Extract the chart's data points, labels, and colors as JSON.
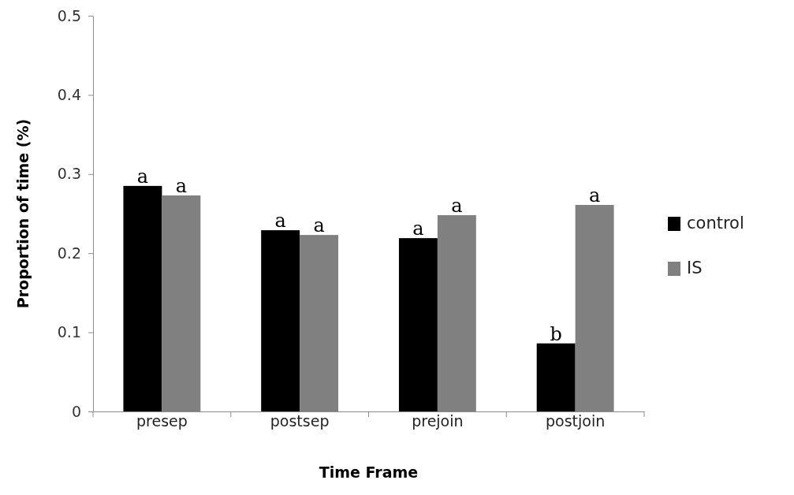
{
  "chart_data": {
    "type": "bar",
    "xlabel": "Time Frame",
    "ylabel": "Proportion  of time (%)",
    "categories": [
      "presep",
      "postsep",
      "prejoin",
      "postjoin"
    ],
    "series": [
      {
        "name": "control",
        "color": "#000000",
        "values": [
          0.285,
          0.229,
          0.219,
          0.086
        ]
      },
      {
        "name": "IS",
        "color": "#808080",
        "values": [
          0.273,
          0.223,
          0.248,
          0.261
        ]
      }
    ],
    "ylim": [
      0,
      0.5
    ],
    "yticks": [
      0,
      0.1,
      0.2,
      0.3,
      0.4,
      0.5
    ],
    "grid": false,
    "legend": "right",
    "annotations": [
      {
        "text": "a",
        "x": "presep",
        "y": 0.285
      },
      {
        "text": "a",
        "x": "presep",
        "y": 0.273
      },
      {
        "text": "a",
        "x": "postsep",
        "y": 0.229
      },
      {
        "text": "a",
        "x": "postsep",
        "y": 0.223
      },
      {
        "text": "a",
        "x": "prejoin",
        "y": 0.219
      },
      {
        "text": "a",
        "x": "prejoin",
        "y": 0.248
      },
      {
        "text": "b",
        "x": "postjoin",
        "y": 0.086
      },
      {
        "text": "a",
        "x": "postjoin",
        "y": 0.261
      }
    ]
  }
}
